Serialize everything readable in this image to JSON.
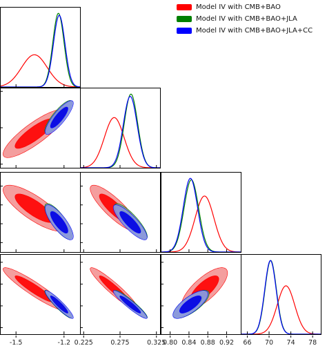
{
  "chart_data": {
    "type": "corner",
    "legend": {
      "placement": "top-right",
      "entries": [
        {
          "label": "Model IV with CMB+BAO",
          "color": "#ff0000"
        },
        {
          "label": "Model IV with CMB+BAO+JLA",
          "color": "#008000"
        },
        {
          "label": "Model IV with CMB+BAO+JLA+CC",
          "color": "#0000ff"
        }
      ]
    },
    "parameters": [
      {
        "range": [
          -1.6,
          -1.1
        ],
        "ticks": [
          "-1.5",
          "-1.2"
        ],
        "tick_values": [
          -1.5,
          -1.2
        ]
      },
      {
        "range": [
          0.22,
          0.33
        ],
        "ticks": [
          "0.225",
          "0.275",
          "0.325"
        ],
        "tick_values": [
          0.225,
          0.275,
          0.325
        ]
      },
      {
        "range": [
          0.78,
          0.95
        ],
        "ticks": [
          "0.80",
          "0.84",
          "0.88",
          "0.92"
        ],
        "tick_values": [
          0.8,
          0.84,
          0.88,
          0.92
        ]
      },
      {
        "range": [
          64.8,
          79.5
        ],
        "ticks": [
          "66",
          "70",
          "74",
          "78"
        ],
        "tick_values": [
          66,
          70,
          74,
          78
        ]
      }
    ],
    "series": [
      {
        "color": "#ff0000",
        "fill_outer": "#f28d8d",
        "fill_inner": "#ff0000",
        "means": [
          -1.385,
          0.267,
          0.873,
          73.1
        ],
        "sigmas": [
          0.08,
          0.0135,
          0.02,
          1.6
        ],
        "correlations": {
          "1-0": 0.85,
          "2-0": -0.8,
          "2-1": -0.85,
          "3-0": -0.93,
          "3-1": -0.94,
          "3-2": 0.75
        }
      },
      {
        "color": "#008000",
        "fill_outer": "#7a9e8c",
        "fill_inner": "#007a00",
        "means": [
          -1.235,
          0.29,
          0.845,
          70.3
        ],
        "sigmas": [
          0.035,
          0.0092,
          0.0155,
          1.05
        ],
        "correlations": {
          "1-0": 0.85,
          "2-0": -0.8,
          "2-1": -0.85,
          "3-0": -0.93,
          "3-1": -0.94,
          "3-2": 0.75
        }
      },
      {
        "color": "#0000ff",
        "fill_outer": "#8c96e6",
        "fill_inner": "#0000e6",
        "means": [
          -1.23,
          0.289,
          0.843,
          70.25
        ],
        "sigmas": [
          0.036,
          0.0095,
          0.0152,
          1.05
        ],
        "correlations": {
          "1-0": 0.85,
          "2-0": -0.8,
          "2-1": -0.85,
          "3-0": -0.93,
          "3-1": -0.94,
          "3-2": 0.75
        }
      }
    ]
  }
}
